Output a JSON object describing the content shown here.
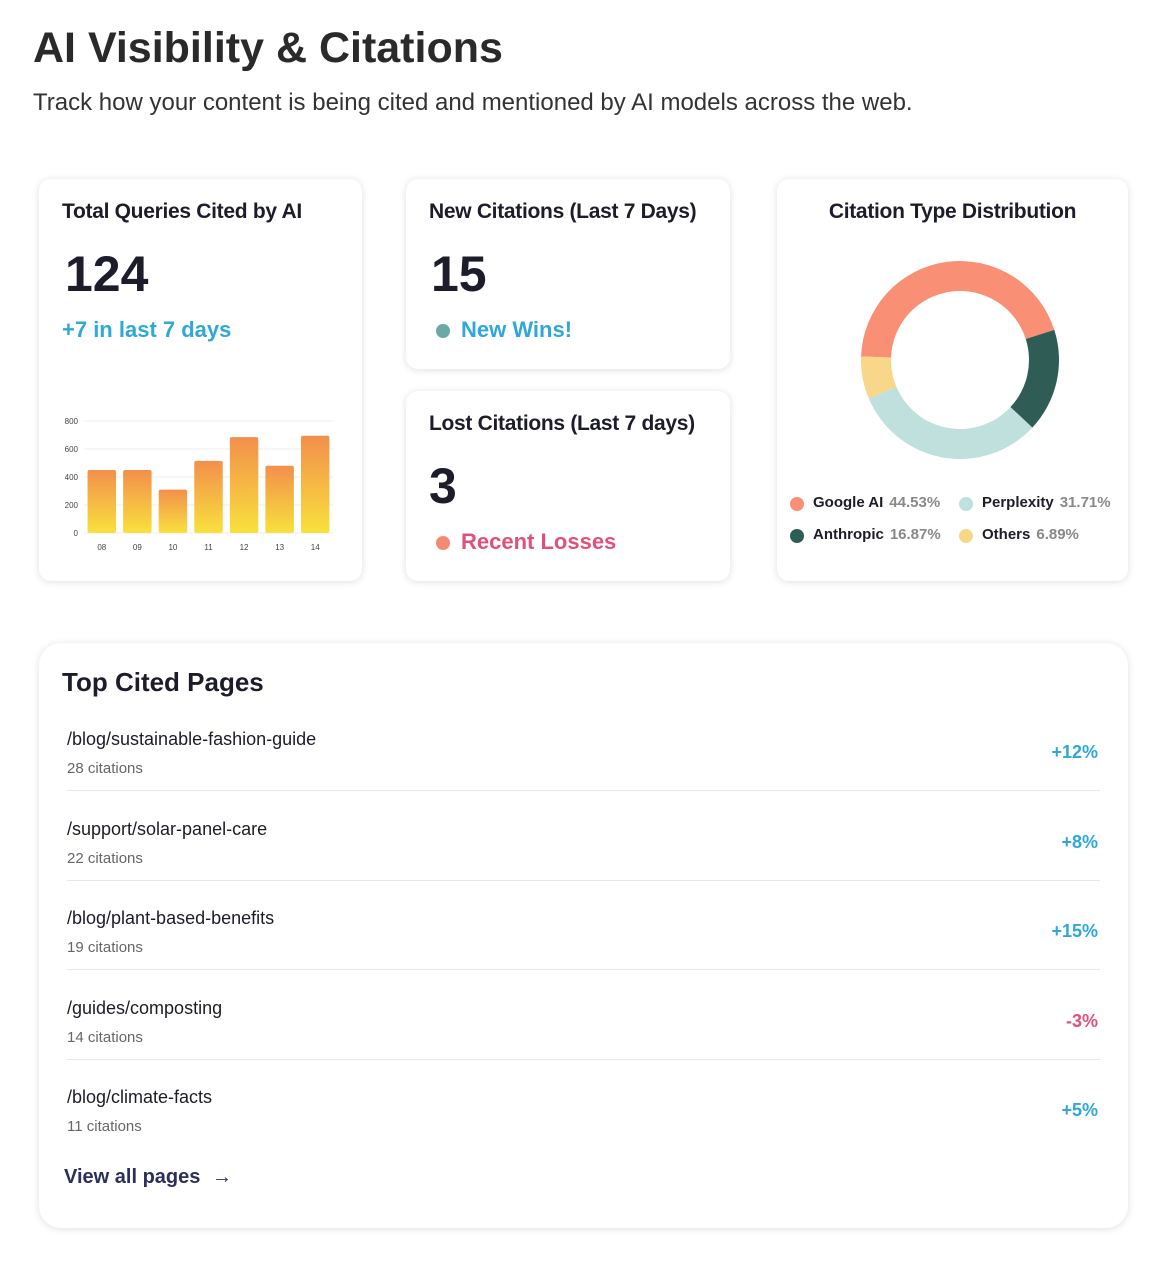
{
  "header": {
    "title": "AI Visibility & Citations",
    "subtitle": "Track how your content is being cited and mentioned by AI models across the web."
  },
  "cards": {
    "total_queries": {
      "title": "Total Queries Cited by AI",
      "value": "124",
      "change": "+7 in last 7 days",
      "chart_data": {
        "type": "bar",
        "categories": [
          "08",
          "09",
          "10",
          "11",
          "12",
          "13",
          "14"
        ],
        "values": [
          450,
          450,
          310,
          515,
          685,
          480,
          695
        ],
        "gradient": [
          "#f38f4c",
          "#f8e13c"
        ],
        "ylim": [
          0,
          800
        ],
        "yticks": [
          0,
          200,
          400,
          600,
          800
        ],
        "grid": true
      }
    },
    "new_citations": {
      "title": "New Citations (Last 7 Days)",
      "value": "15",
      "status": "New Wins!"
    },
    "lost_citations": {
      "title": "Lost Citations (Last 7 days)",
      "value": "3",
      "status": "Recent Losses"
    },
    "distribution": {
      "chart_data": {
        "type": "pie",
        "title": "Citation Type Distribution",
        "categories": [
          "Google AI",
          "Perplexity",
          "Anthropic",
          "Others"
        ],
        "values": [
          44.53,
          31.71,
          16.87,
          6.89
        ],
        "value_labels": [
          "44.53%",
          "31.71%",
          "16.87%",
          "6.89%"
        ],
        "colors": [
          "#f98f75",
          "#bfe0dd",
          "#2f5d55",
          "#f8d68a"
        ]
      }
    }
  },
  "top_pages": {
    "title": "Top Cited Pages",
    "rows": [
      {
        "path": "/blog/sustainable-fashion-guide",
        "citations": "28 citations",
        "change": "+12%"
      },
      {
        "path": "/support/solar-panel-care",
        "citations": "22 citations",
        "change": "+8%"
      },
      {
        "path": "/blog/plant-based-benefits",
        "citations": "19 citations",
        "change": "+15%"
      },
      {
        "path": "/guides/composting",
        "citations": "14 citations",
        "change": "-3%"
      },
      {
        "path": "/blog/climate-facts",
        "citations": "11 citations",
        "change": "+5%"
      }
    ],
    "link": "View all pages"
  }
}
